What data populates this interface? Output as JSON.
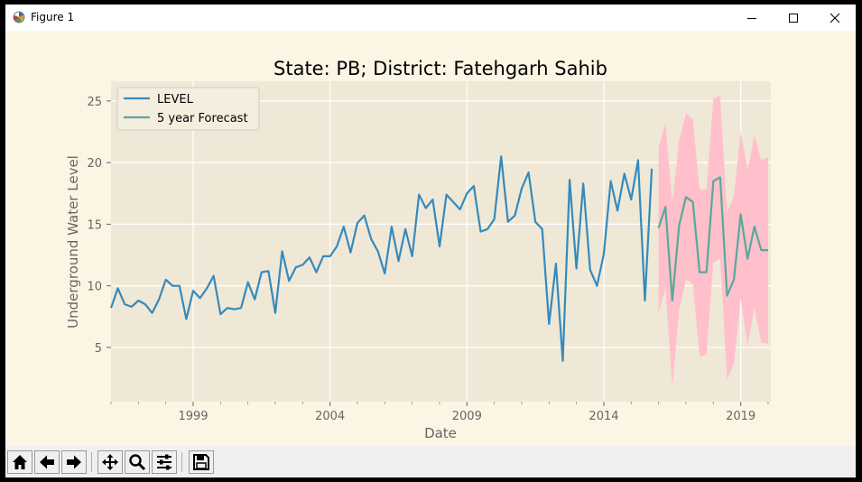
{
  "window": {
    "title": "Figure 1"
  },
  "chart_data": {
    "type": "line",
    "title": "State: PB;  District: Fatehgarh Sahib",
    "xlabel": "Date",
    "ylabel": "Underground Water Level",
    "xlim": [
      1996.0,
      2020.1
    ],
    "ylim": [
      0.6,
      26.6
    ],
    "x_ticks": [
      1999,
      2004,
      2009,
      2014,
      2019
    ],
    "y_ticks": [
      5,
      10,
      15,
      20,
      25
    ],
    "grid": true,
    "legend": "top-left",
    "colors": {
      "level": "#348abd",
      "forecast": "#57a99c",
      "band": "#ffc0cb",
      "plot_bg": "#f0e8d6"
    },
    "series": [
      {
        "name": "LEVEL",
        "x": [
          1996.0,
          1996.25,
          1996.5,
          1996.75,
          1997.0,
          1997.25,
          1997.5,
          1997.75,
          1998.0,
          1998.25,
          1998.5,
          1998.75,
          1999.0,
          1999.25,
          1999.5,
          1999.75,
          2000.0,
          2000.25,
          2000.5,
          2000.75,
          2001.0,
          2001.25,
          2001.5,
          2001.75,
          2002.0,
          2002.25,
          2002.5,
          2002.75,
          2003.0,
          2003.25,
          2003.5,
          2003.75,
          2004.0,
          2004.25,
          2004.5,
          2004.75,
          2005.0,
          2005.25,
          2005.5,
          2005.75,
          2006.0,
          2006.25,
          2006.5,
          2006.75,
          2007.0,
          2007.25,
          2007.5,
          2007.75,
          2008.0,
          2008.25,
          2008.5,
          2008.75,
          2009.0,
          2009.25,
          2009.5,
          2009.75,
          2010.0,
          2010.25,
          2010.5,
          2010.75,
          2011.0,
          2011.25,
          2011.5,
          2011.75,
          2012.0,
          2012.25,
          2012.5,
          2012.75,
          2013.0,
          2013.25,
          2013.5,
          2013.75,
          2014.0,
          2014.25,
          2014.5,
          2014.75,
          2015.0,
          2015.25,
          2015.5,
          2015.75
        ],
        "y": [
          8.2,
          9.8,
          8.5,
          8.3,
          8.8,
          8.5,
          7.8,
          8.9,
          10.5,
          10.0,
          10.0,
          7.3,
          9.6,
          9.0,
          9.8,
          10.8,
          7.7,
          8.2,
          8.1,
          8.2,
          10.3,
          8.9,
          11.1,
          11.2,
          7.8,
          12.8,
          10.4,
          11.5,
          11.7,
          12.3,
          11.1,
          12.4,
          12.4,
          13.2,
          14.8,
          12.7,
          15.1,
          15.7,
          13.8,
          12.8,
          11.0,
          14.8,
          12.0,
          14.6,
          12.4,
          17.4,
          16.3,
          17.0,
          13.2,
          17.4,
          16.8,
          16.2,
          17.5,
          18.1,
          14.4,
          14.6,
          15.4,
          20.5,
          15.2,
          15.7,
          17.9,
          19.2,
          15.2,
          14.6,
          6.9,
          11.8,
          3.9,
          18.6,
          11.4,
          18.3,
          11.3,
          10.0,
          12.6,
          18.5,
          16.1,
          19.1,
          17.0,
          20.2,
          8.8,
          19.5
        ]
      },
      {
        "name": "5 year Forecast",
        "x": [
          2016.0,
          2016.25,
          2016.5,
          2016.75,
          2017.0,
          2017.25,
          2017.5,
          2017.75,
          2018.0,
          2018.25,
          2018.5,
          2018.75,
          2019.0,
          2019.25,
          2019.5,
          2019.75,
          2020.0
        ],
        "y": [
          14.7,
          16.4,
          8.8,
          14.9,
          17.2,
          16.8,
          11.1,
          11.1,
          18.5,
          18.8,
          9.2,
          10.5,
          15.8,
          12.2,
          14.8,
          12.9,
          12.9
        ],
        "band_upper": [
          21.2,
          23.2,
          16.8,
          21.8,
          24.0,
          23.5,
          17.8,
          17.8,
          25.2,
          25.4,
          16.0,
          17.3,
          22.5,
          19.4,
          22.2,
          20.2,
          20.4
        ],
        "band_lower": [
          7.8,
          9.8,
          1.8,
          8.0,
          10.5,
          10.1,
          4.2,
          4.4,
          11.9,
          12.2,
          2.4,
          3.7,
          9.0,
          5.1,
          8.2,
          5.4,
          5.3
        ]
      }
    ]
  }
}
